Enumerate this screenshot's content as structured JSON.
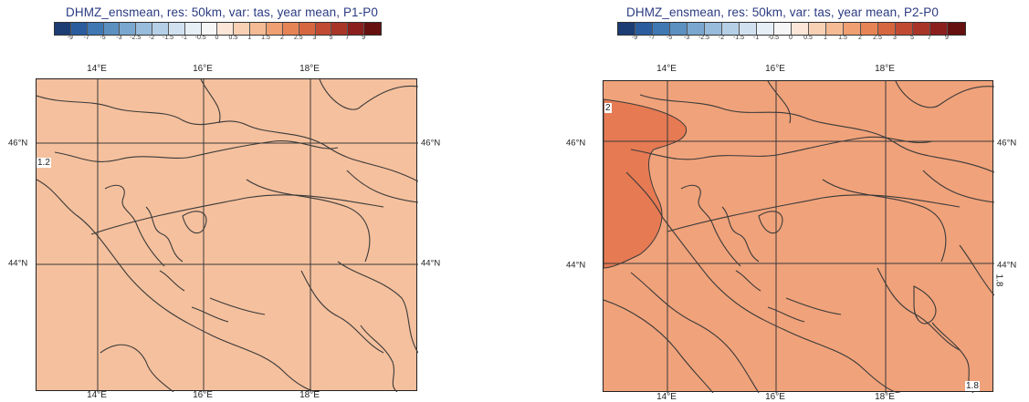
{
  "colors": {
    "colorbar": [
      "#1c3c74",
      "#2b5d9e",
      "#3f78b3",
      "#5b90c1",
      "#7aa7cf",
      "#98bcdb",
      "#b5cfe6",
      "#d0e0ef",
      "#e6eef6",
      "#f6f6f6",
      "#fbe6d8",
      "#f8d1b5",
      "#f4bb94",
      "#ef9f71",
      "#e68455",
      "#d66640",
      "#c04b32",
      "#a83528",
      "#8a1f1e",
      "#661010"
    ],
    "fill_left": "#f5c09d",
    "fill_right": "#f0a27a",
    "hotspot_right": "#e67a53",
    "contour": "#3a3a3a",
    "grid": "#3a3a3a"
  },
  "left": {
    "title": "DHMZ_ensmean, res: 50km, var: tas, year mean, P1-P0",
    "colorbar_ticks": [
      "-9",
      "-7",
      "-5",
      "-3",
      "-2.5",
      "-2",
      "-1.5",
      "-1",
      "-0.5",
      "0",
      "0.5",
      "1",
      "1.5",
      "2",
      "2.5",
      "3",
      "5",
      "7",
      "9"
    ],
    "lon_top": [
      "14°E",
      "16°E",
      "18°E"
    ],
    "lon_bottom": [
      "14°E",
      "16°E",
      "18°E"
    ],
    "lat_left": [
      "46°N",
      "44°N"
    ],
    "lat_right": [
      "46°N",
      "44°N"
    ],
    "contour_labels": [
      "1.2"
    ]
  },
  "right": {
    "title": "DHMZ_ensmean, res: 50km, var: tas, year mean, P2-P0",
    "colorbar_ticks": [
      "-9",
      "-7",
      "-5",
      "-3",
      "-2.5",
      "-2",
      "-1.5",
      "-1",
      "-0.5",
      "0",
      "0.5",
      "1",
      "1.5",
      "2",
      "2.5",
      "3",
      "5",
      "7",
      "9"
    ],
    "lon_top": [
      "14°E",
      "16°E",
      "18°E"
    ],
    "lon_bottom": [
      "14°E",
      "16°E",
      "18°E"
    ],
    "lat_left": [
      "46°N",
      "44°N"
    ],
    "lat_right": [
      "46°N",
      "44°N"
    ],
    "contour_labels": [
      "2",
      "1.8",
      "1.8"
    ]
  }
}
